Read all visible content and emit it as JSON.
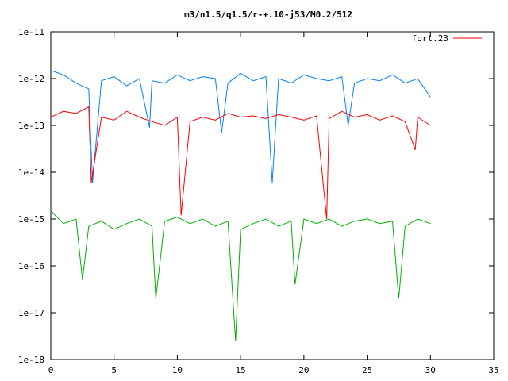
{
  "chart_data": {
    "type": "line",
    "title": "m3/n1.5/q1.5/r-+.10-j53/M0.2/512",
    "xlabel": "",
    "ylabel": "",
    "xlim": [
      0,
      35
    ],
    "ylim": [
      1e-18,
      1e-11
    ],
    "yscale": "log",
    "grid": false,
    "legend_position": "top-right",
    "x_ticks": [
      "0",
      "5",
      "10",
      "15",
      "20",
      "25",
      "30",
      "35"
    ],
    "y_ticks": [
      "1e-18",
      "1e-17",
      "1e-16",
      "1e-15",
      "1e-14",
      "1e-13",
      "1e-12",
      "1e-11"
    ],
    "legend": {
      "label": "fort.23",
      "color": "#ff0000"
    },
    "series": [
      {
        "color": "#0080ff",
        "x": [
          0,
          1,
          2,
          3,
          4,
          5,
          6,
          7,
          8,
          9,
          10,
          11,
          12,
          13,
          14,
          15,
          16,
          17,
          18,
          19,
          20,
          21,
          22,
          23,
          24,
          25,
          26,
          27,
          28,
          29,
          30
        ],
        "y": [
          1.5e-12,
          1.2e-12,
          8e-13,
          6e-13,
          9e-13,
          1.1e-12,
          7e-13,
          1e-12,
          9e-13,
          8e-13,
          1.2e-12,
          9e-13,
          1.1e-12,
          1e-12,
          8e-13,
          1.3e-12,
          9e-13,
          1.1e-12,
          1e-12,
          8e-13,
          1.2e-12,
          1e-12,
          9e-13,
          1.1e-12,
          8e-13,
          1e-12,
          9e-13,
          1.2e-12,
          8e-13,
          1e-12,
          4e-13
        ],
        "x_min_points": [
          3.3,
          7.8,
          13.5,
          17.5,
          23.5
        ],
        "y_min_points": [
          6e-15,
          9e-14,
          7e-14,
          6e-15,
          1e-13
        ]
      },
      {
        "color": "#ff0000",
        "x": [
          0,
          1,
          2,
          3,
          4,
          5,
          6,
          7,
          8,
          9,
          10,
          11,
          12,
          13,
          14,
          15,
          16,
          17,
          18,
          19,
          20,
          21,
          22,
          23,
          24,
          25,
          26,
          27,
          28,
          29,
          30
        ],
        "y": [
          1.5e-13,
          2e-13,
          1.8e-13,
          2.5e-13,
          1.5e-13,
          1.3e-13,
          2e-13,
          1.5e-13,
          1.2e-13,
          1e-13,
          1.5e-13,
          1.2e-13,
          1.5e-13,
          1.3e-13,
          1.8e-13,
          1.5e-13,
          1.6e-13,
          1.4e-13,
          1.7e-13,
          1.5e-13,
          1.3e-13,
          1.6e-13,
          1.4e-13,
          2e-13,
          1.5e-13,
          1.7e-13,
          1.3e-13,
          1.6e-13,
          1.2e-13,
          1.5e-13,
          1e-13
        ],
        "x_min_points": [
          3.2,
          10.3,
          21.8,
          28.8
        ],
        "y_min_points": [
          6e-15,
          1.2e-15,
          1e-15,
          3e-14
        ]
      },
      {
        "color": "#00b000",
        "x": [
          0,
          1,
          2,
          3,
          4,
          5,
          6,
          7,
          8,
          9,
          10,
          11,
          12,
          13,
          14,
          15,
          16,
          17,
          18,
          19,
          20,
          21,
          22,
          23,
          24,
          25,
          26,
          27,
          28,
          29,
          30
        ],
        "y": [
          1.5e-15,
          8e-16,
          1e-15,
          7e-16,
          9e-16,
          6e-16,
          8e-16,
          1e-15,
          7e-16,
          9e-16,
          1.1e-15,
          8e-16,
          1e-15,
          7e-16,
          9e-16,
          6e-16,
          8e-16,
          1e-15,
          7e-16,
          9e-16,
          1e-15,
          8e-16,
          1e-15,
          7e-16,
          9e-16,
          1e-15,
          8e-16,
          9e-16,
          7e-16,
          1e-15,
          8e-16
        ],
        "x_min_points": [
          2.5,
          8.3,
          14.6,
          19.3,
          27.5
        ],
        "y_min_points": [
          5e-17,
          2e-17,
          2.5e-18,
          4e-17,
          2e-17
        ]
      }
    ]
  }
}
